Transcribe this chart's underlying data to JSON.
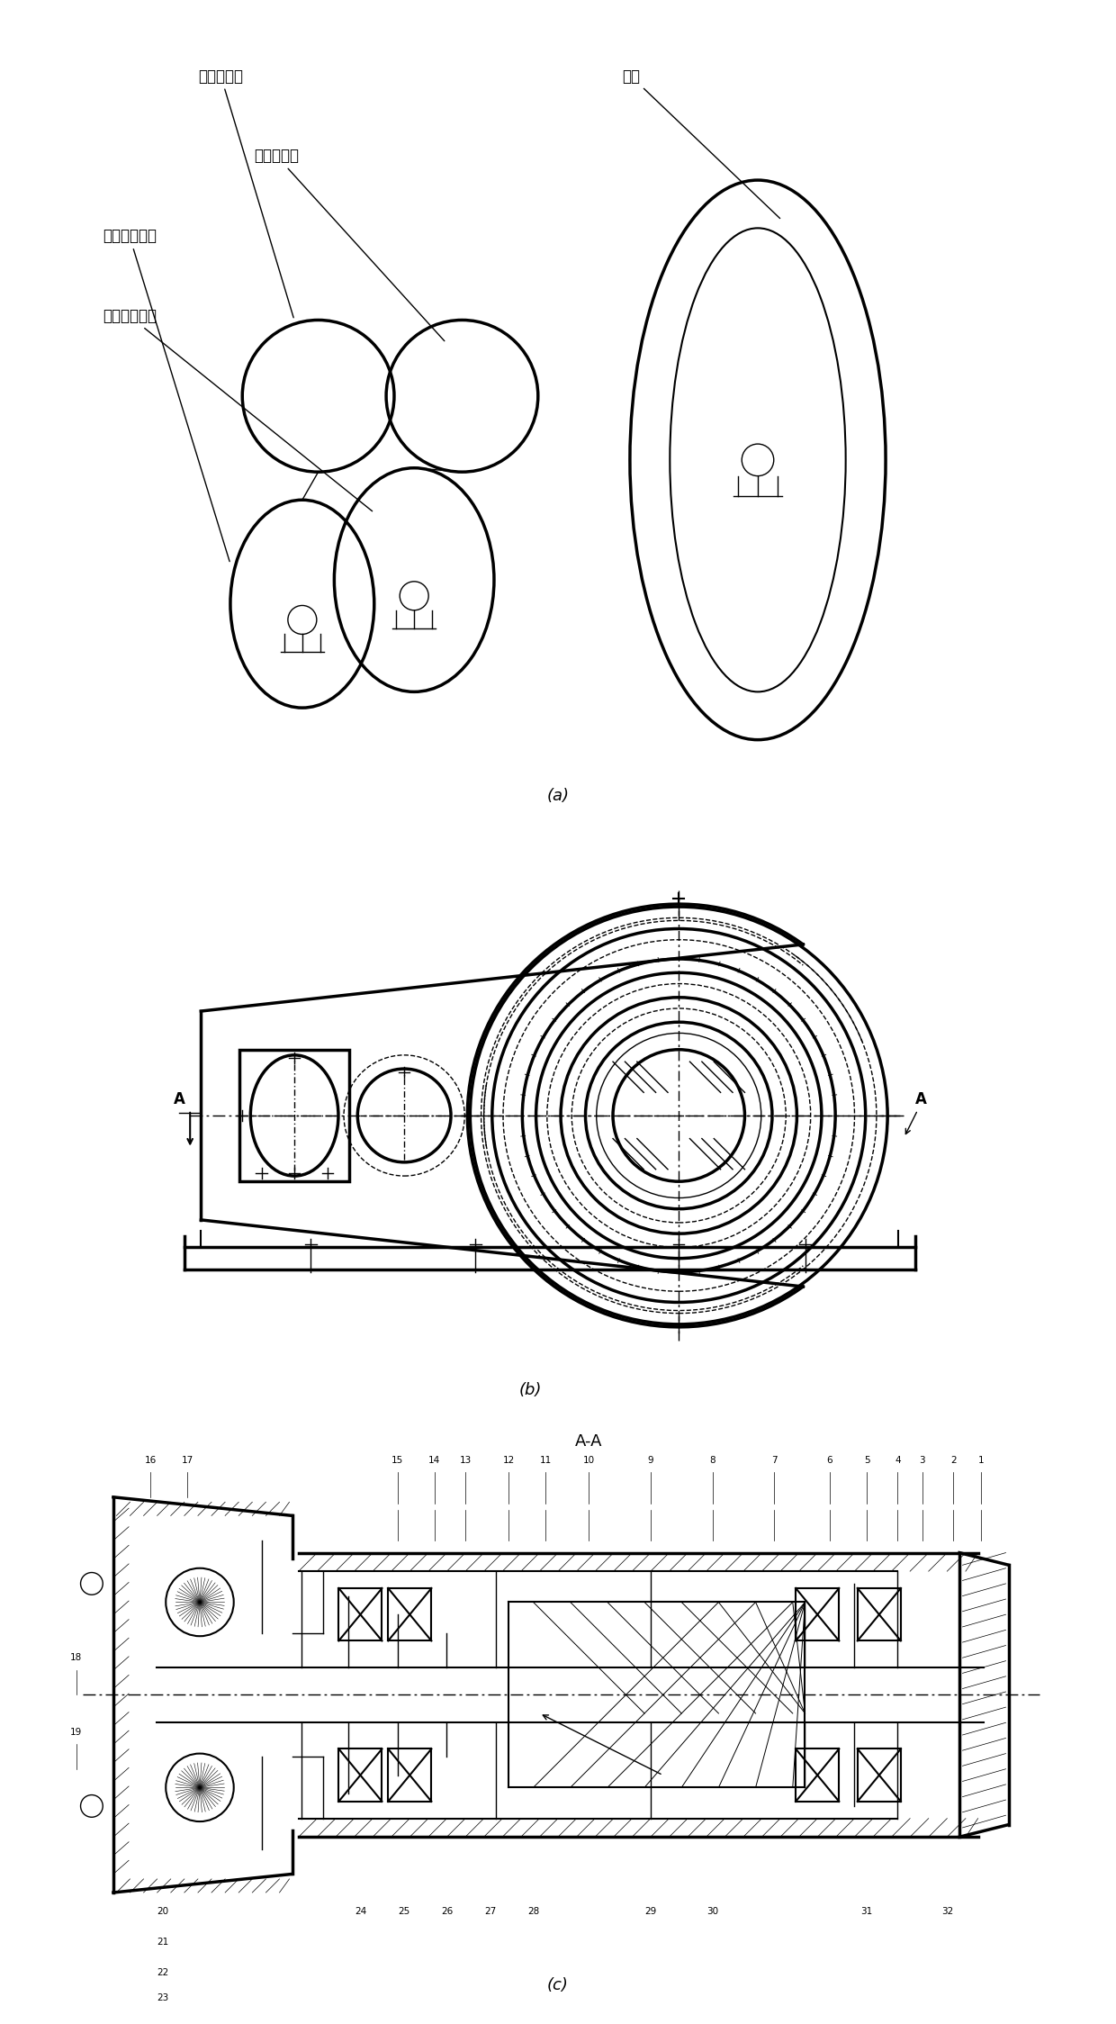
{
  "bg_color": "#ffffff",
  "panel_a_label": "(a)",
  "panel_b_label": "(b)",
  "panel_c_label": "(c)",
  "section_label": "A-A",
  "labels_a": {
    "cong_dong_yuan": "从动圆鯵轮",
    "zhu_dong_yuan": "主动圆鯵轮",
    "cong_dong_fei": "从动非圆鯵轮",
    "zhu_dong_fei": "主动非圆鯵轮",
    "leng_jing": "棱镜"
  },
  "part_numbers_top": [
    "1",
    "2",
    "3",
    "4",
    "5",
    "6",
    "7",
    "8",
    "9",
    "10",
    "11",
    "12",
    "13",
    "14",
    "15"
  ],
  "part_numbers_bot": [
    "16",
    "17",
    "18",
    "19",
    "20",
    "21",
    "22",
    "23",
    "24",
    "25",
    "26",
    "27",
    "28",
    "29",
    "30",
    "31",
    "32"
  ]
}
